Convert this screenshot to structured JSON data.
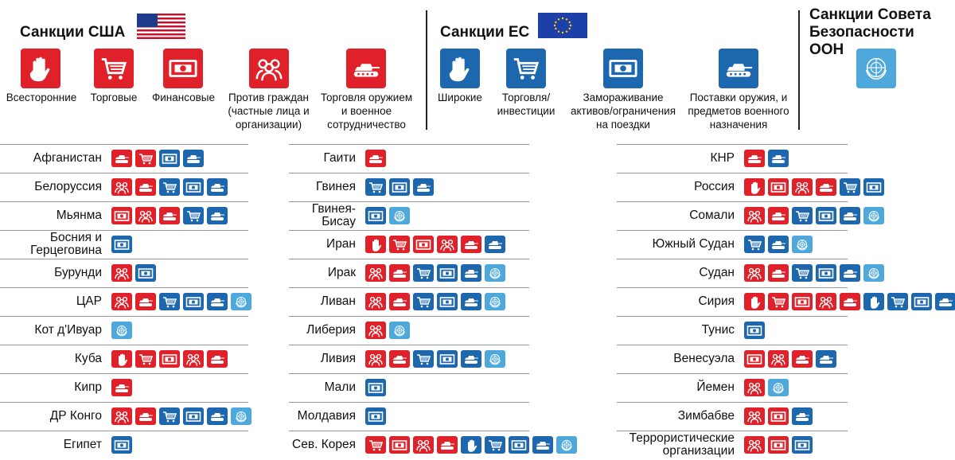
{
  "header": {
    "us": {
      "title": "Санкции США",
      "categories": [
        {
          "key": "all",
          "label": "Всесторонние"
        },
        {
          "key": "trade",
          "label": "Торговые"
        },
        {
          "key": "fin",
          "label": "Финансовые"
        },
        {
          "key": "people",
          "label": "Против граждан (частные лица и организации)"
        },
        {
          "key": "arms",
          "label": "Торговля оружием и военное сотрудничество"
        }
      ]
    },
    "eu": {
      "title": "Санкции ЕС",
      "categories": [
        {
          "key": "all",
          "label": "Широкие"
        },
        {
          "key": "trade",
          "label": "Торговля/ инвестиции"
        },
        {
          "key": "fin",
          "label": "Замораживание активов/ограничения на поездки"
        },
        {
          "key": "arms",
          "label": "Поставки оружия, и предметов военного назначения"
        }
      ]
    },
    "un": {
      "title": "Санкции Совета Безопасности ООН"
    }
  },
  "colors": {
    "us": "#e12129",
    "eu": "#1d67ae",
    "un": "#4fa8dc"
  },
  "icon_names": {
    "all": "hand-icon",
    "trade": "cart-icon",
    "fin": "money-icon",
    "people": "people-icon",
    "arms": "tank-icon",
    "un": "un-emblem-icon"
  },
  "columns": [
    {
      "rows": [
        {
          "name": "Афганистан",
          "sanctions": [
            "us:arms",
            "us:trade",
            "eu:fin",
            "eu:arms"
          ]
        },
        {
          "name": "Белоруссия",
          "sanctions": [
            "us:people",
            "us:arms",
            "eu:trade",
            "eu:fin",
            "eu:arms"
          ]
        },
        {
          "name": "Мьянма",
          "sanctions": [
            "us:fin",
            "us:people",
            "us:arms",
            "eu:trade",
            "eu:arms"
          ]
        },
        {
          "name": "Босния и Герцеговина",
          "sanctions": [
            "eu:fin"
          ]
        },
        {
          "name": "Бурунди",
          "sanctions": [
            "us:people",
            "eu:fin"
          ]
        },
        {
          "name": "ЦАР",
          "sanctions": [
            "us:people",
            "us:arms",
            "eu:trade",
            "eu:fin",
            "eu:arms",
            "un:un"
          ]
        },
        {
          "name": "Кот д'Ивуар",
          "sanctions": [
            "un:un"
          ]
        },
        {
          "name": "Куба",
          "sanctions": [
            "us:all",
            "us:trade",
            "us:fin",
            "us:people",
            "us:arms"
          ]
        },
        {
          "name": "Кипр",
          "sanctions": [
            "us:arms"
          ]
        },
        {
          "name": "ДР Конго",
          "sanctions": [
            "us:people",
            "us:arms",
            "eu:trade",
            "eu:fin",
            "eu:arms",
            "un:un"
          ]
        },
        {
          "name": "Египет",
          "sanctions": [
            "eu:fin"
          ]
        }
      ]
    },
    {
      "rows": [
        {
          "name": "Гаити",
          "sanctions": [
            "us:arms"
          ]
        },
        {
          "name": "Гвинея",
          "sanctions": [
            "eu:trade",
            "eu:fin",
            "eu:arms"
          ]
        },
        {
          "name": "Гвинея-Бисау",
          "sanctions": [
            "eu:fin",
            "un:un"
          ]
        },
        {
          "name": "Иран",
          "sanctions": [
            "us:all",
            "us:trade",
            "us:fin",
            "us:people",
            "us:arms",
            "eu:arms"
          ]
        },
        {
          "name": "Ирак",
          "sanctions": [
            "us:people",
            "us:arms",
            "eu:trade",
            "eu:fin",
            "eu:arms",
            "un:un"
          ]
        },
        {
          "name": "Ливан",
          "sanctions": [
            "us:people",
            "us:arms",
            "eu:trade",
            "eu:fin",
            "eu:arms",
            "un:un"
          ]
        },
        {
          "name": "Либерия",
          "sanctions": [
            "us:people",
            "un:un"
          ]
        },
        {
          "name": "Ливия",
          "sanctions": [
            "us:people",
            "us:arms",
            "eu:trade",
            "eu:fin",
            "eu:arms",
            "un:un"
          ]
        },
        {
          "name": "Мали",
          "sanctions": [
            "eu:fin"
          ]
        },
        {
          "name": "Молдавия",
          "sanctions": [
            "eu:fin"
          ]
        },
        {
          "name": "Сев. Корея",
          "sanctions": [
            "us:trade",
            "us:fin",
            "us:people",
            "us:arms",
            "eu:all",
            "eu:trade",
            "eu:fin",
            "eu:arms",
            "un:un"
          ]
        }
      ]
    },
    {
      "rows": [
        {
          "name": "КНР",
          "sanctions": [
            "us:arms",
            "eu:arms"
          ]
        },
        {
          "name": "Россия",
          "sanctions": [
            "us:all",
            "us:fin",
            "us:people",
            "us:arms",
            "eu:trade",
            "eu:fin"
          ]
        },
        {
          "name": "Сомали",
          "sanctions": [
            "us:people",
            "us:arms",
            "eu:trade",
            "eu:fin",
            "eu:arms",
            "un:un"
          ]
        },
        {
          "name": "Южный Судан",
          "sanctions": [
            "eu:trade",
            "eu:arms",
            "un:un"
          ]
        },
        {
          "name": "Судан",
          "sanctions": [
            "us:people",
            "us:arms",
            "eu:trade",
            "eu:fin",
            "eu:arms",
            "un:un"
          ]
        },
        {
          "name": "Сирия",
          "sanctions": [
            "us:all",
            "us:trade",
            "us:fin",
            "us:people",
            "us:arms",
            "eu:all",
            "eu:trade",
            "eu:fin",
            "eu:arms"
          ]
        },
        {
          "name": "Тунис",
          "sanctions": [
            "eu:fin"
          ]
        },
        {
          "name": "Венесуэла",
          "sanctions": [
            "us:fin",
            "us:people",
            "us:arms",
            "eu:arms"
          ]
        },
        {
          "name": "Йемен",
          "sanctions": [
            "us:people",
            "un:un"
          ]
        },
        {
          "name": "Зимбабве",
          "sanctions": [
            "us:people",
            "us:fin",
            "eu:arms"
          ]
        },
        {
          "name": "Террористические организации",
          "sanctions": [
            "us:people",
            "us:fin",
            "eu:fin"
          ]
        }
      ]
    }
  ]
}
